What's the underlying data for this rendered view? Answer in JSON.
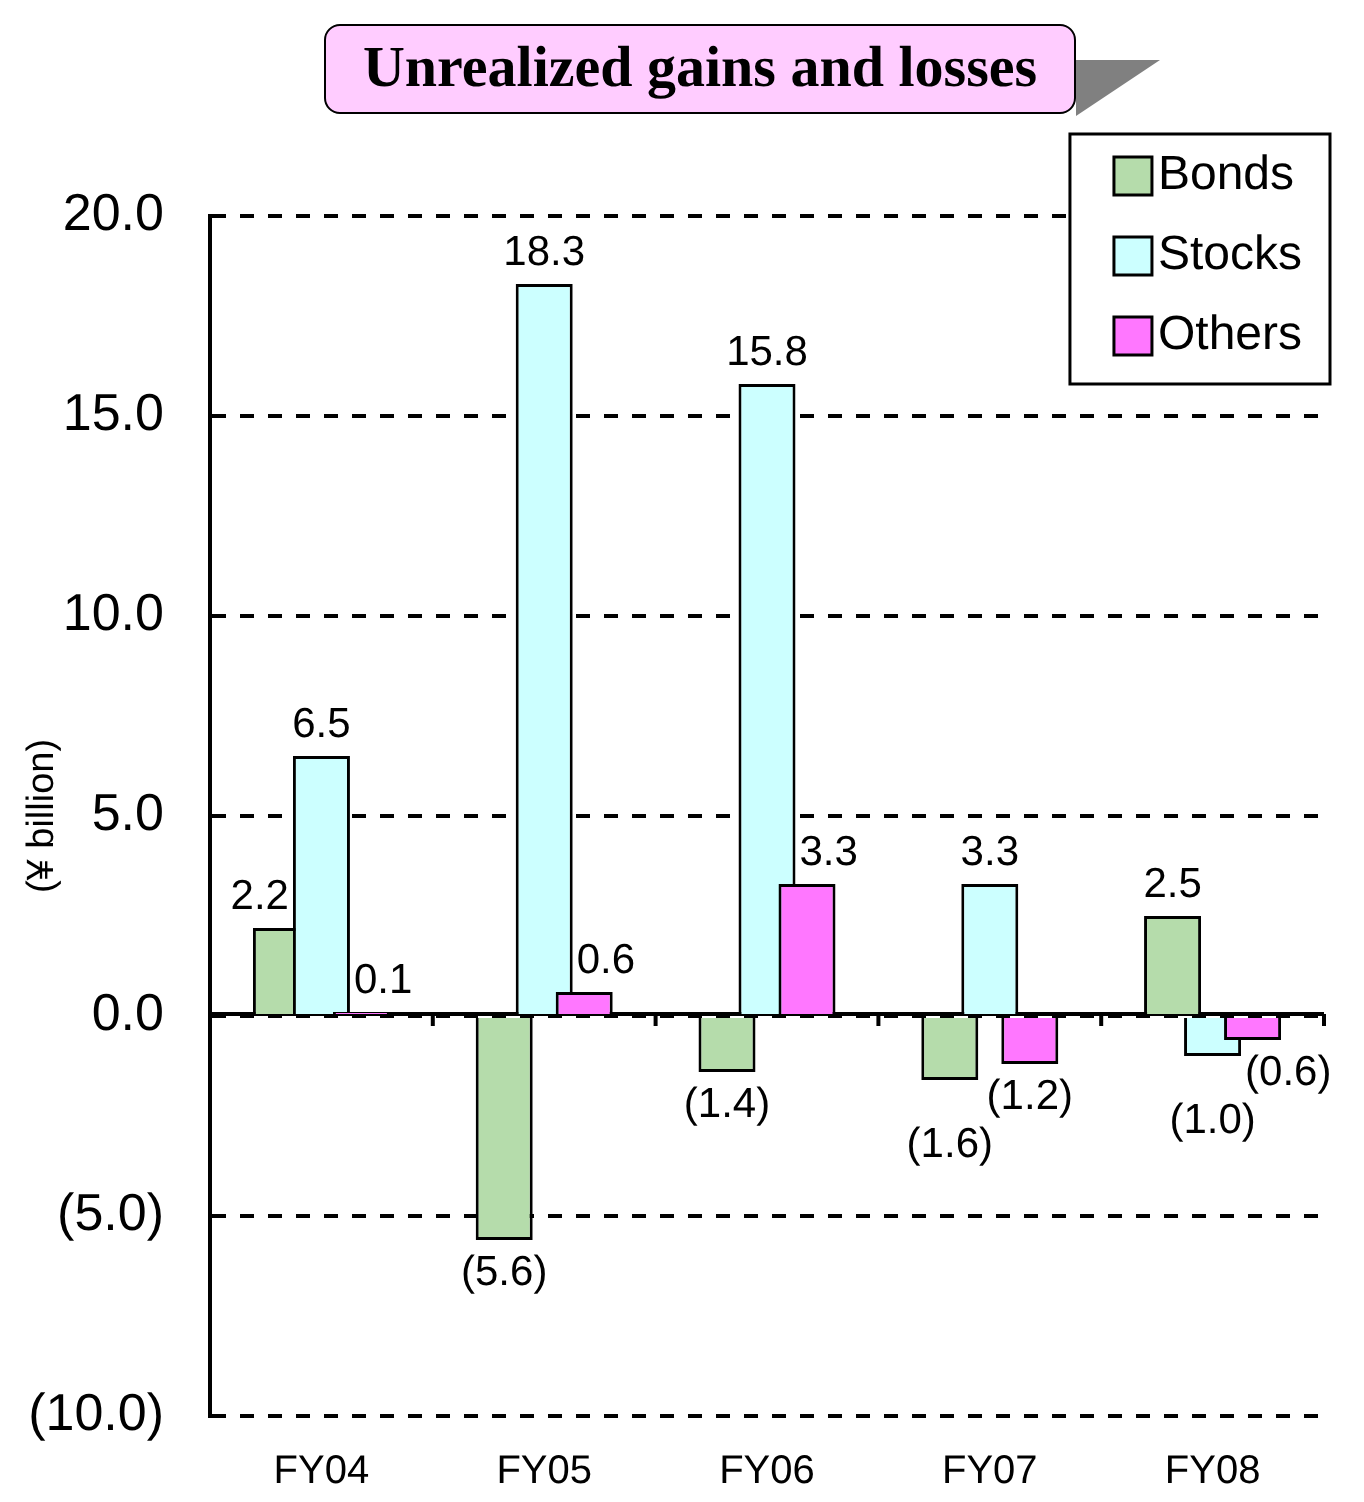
{
  "chart_data": {
    "type": "bar",
    "title": "Unrealized gains and losses",
    "ylabel": "(¥ billion)",
    "categories": [
      "FY04",
      "FY05",
      "FY06",
      "FY07",
      "FY08"
    ],
    "series": [
      {
        "name": "Bonds",
        "color": "#b5dcab",
        "values": [
          2.2,
          -5.6,
          -1.4,
          -1.6,
          2.5
        ],
        "value_labels": [
          "2.2",
          "(5.6)",
          "(1.4)",
          "(1.6)",
          "2.5"
        ]
      },
      {
        "name": "Stocks",
        "color": "#ccffff",
        "values": [
          6.5,
          18.3,
          15.8,
          3.3,
          -1.0
        ],
        "value_labels": [
          "6.5",
          "18.3",
          "15.8",
          "3.3",
          "(1.0)"
        ]
      },
      {
        "name": "Others",
        "color": "#ff77ff",
        "values": [
          0.1,
          0.6,
          3.3,
          -1.2,
          -0.6
        ],
        "value_labels": [
          "0.1",
          "0.6",
          "3.3",
          "(1.2)",
          "(0.6)"
        ]
      }
    ],
    "ylim": [
      -10,
      20
    ],
    "yticks": [
      {
        "value": -10,
        "label": "(10.0)"
      },
      {
        "value": -5,
        "label": "(5.0)"
      },
      {
        "value": 0,
        "label": "0.0"
      },
      {
        "value": 5,
        "label": "5.0"
      },
      {
        "value": 10,
        "label": "10.0"
      },
      {
        "value": 15,
        "label": "15.0"
      },
      {
        "value": 20,
        "label": "20.0"
      }
    ],
    "grid": "y",
    "legend": "top right"
  }
}
